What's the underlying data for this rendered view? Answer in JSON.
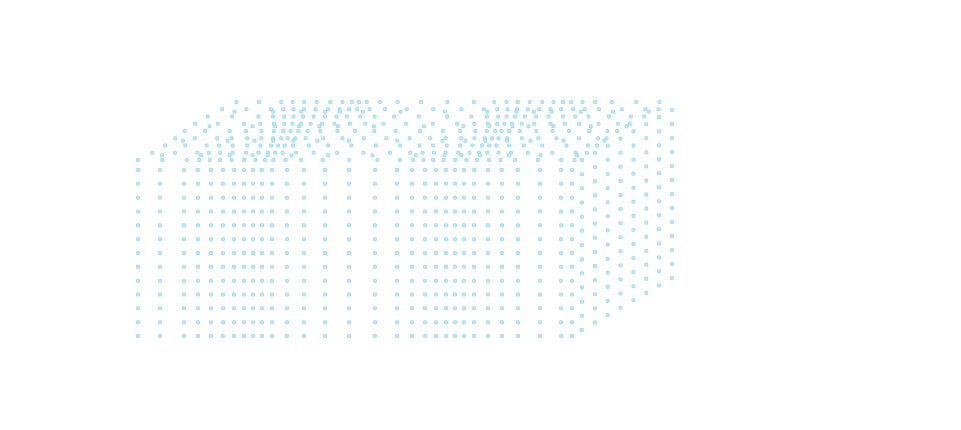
{
  "figure": {
    "description_shape": "dotted-box",
    "dot_color": "#bfe6f8",
    "dot_stroke": "#8fd3f2",
    "background": "#ffffff"
  }
}
